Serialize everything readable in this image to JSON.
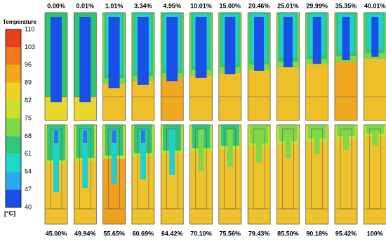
{
  "colorbar": {
    "title": "Temperature",
    "unit": "[°C]",
    "ticks": [
      "110",
      "103",
      "96",
      "89",
      "82",
      "75",
      "68",
      "61",
      "54",
      "47",
      "40"
    ]
  },
  "top_row": {
    "labels": [
      "0.00%",
      "0.01%",
      "1.01%",
      "3.34%",
      "4.95%",
      "10.01%",
      "15.00%",
      "20.46%",
      "25.01%",
      "29.99%",
      "35.35%",
      "40.01%"
    ]
  },
  "bottom_row": {
    "labels": [
      "45.00%",
      "49.94%",
      "55.65%",
      "60.69%",
      "64.42%",
      "70.10%",
      "75.56%",
      "79.43%",
      "85.50%",
      "90.18%",
      "95.42%",
      "100%"
    ]
  }
}
